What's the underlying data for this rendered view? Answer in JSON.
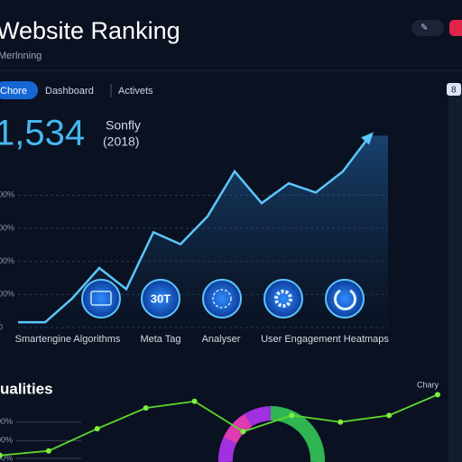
{
  "header": {
    "title": "Website Ranking",
    "subtitle": "Merlnning"
  },
  "tabs": [
    "Chore",
    "Dashboard",
    "Activets"
  ],
  "right_panel": {
    "badge": "8"
  },
  "kpi": {
    "value": "1,534",
    "label": "Sonfly",
    "sublabel": "(2018)"
  },
  "main_chart": {
    "ylim": [
      0,
      150
    ],
    "yticks": [
      {
        "value": 0,
        "label": "0"
      },
      {
        "value": 25,
        "label": "00%"
      },
      {
        "value": 50,
        "label": "00%"
      },
      {
        "value": 75,
        "label": "00%"
      },
      {
        "value": 100,
        "label": "00%"
      }
    ],
    "values": [
      4,
      4,
      22,
      45,
      29,
      72,
      63,
      84,
      118,
      94,
      109,
      102,
      118,
      145
    ],
    "tools": [
      {
        "label": "Smartengine Algorithms"
      },
      {
        "label": "Meta Tag",
        "icon_text": "30T"
      },
      {
        "label": "Analyser"
      },
      {
        "label": "User Engagement Heatmaps"
      }
    ]
  },
  "bottom": {
    "title": "ualities",
    "legend": "Chary",
    "ylim": [
      0,
      100
    ],
    "yticks": [
      {
        "value": 5,
        "label": "00%"
      },
      {
        "value": 29,
        "label": "00%"
      },
      {
        "value": 54,
        "label": "00%"
      }
    ],
    "values": [
      9,
      15,
      45,
      73,
      82,
      41,
      63,
      54,
      63,
      91
    ]
  }
}
